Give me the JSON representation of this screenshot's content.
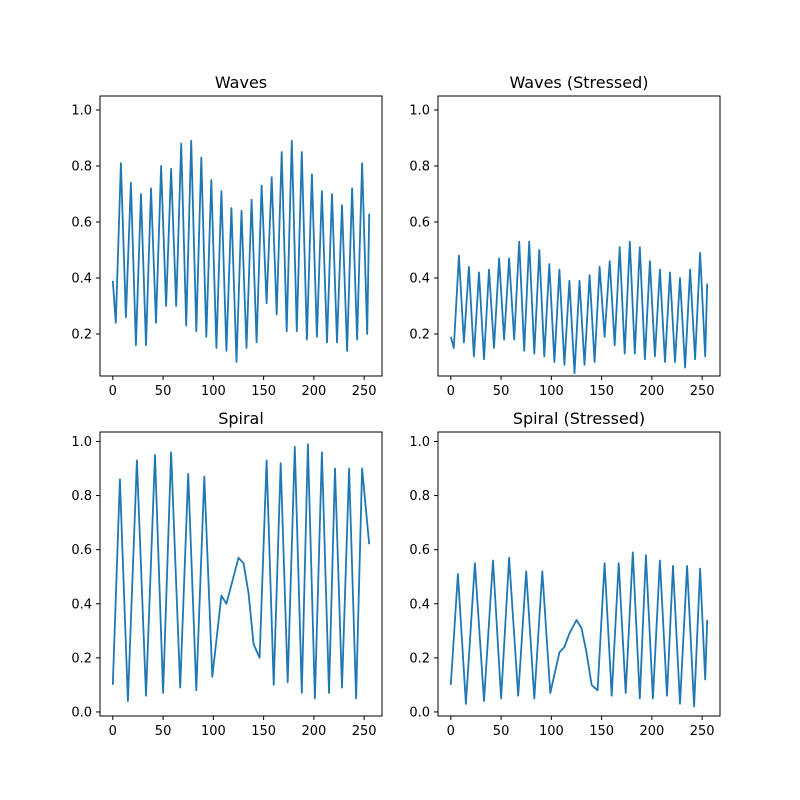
{
  "figure": {
    "background": "#ffffff",
    "line_color": "#1f77b4"
  },
  "chart_data": [
    {
      "type": "line",
      "title": "Waves",
      "xlim": [
        -12.75,
        267.75
      ],
      "ylim": [
        0.05,
        1.05
      ],
      "xticks": [
        0,
        50,
        100,
        150,
        200,
        250
      ],
      "yticks": [
        0.2,
        0.4,
        0.6,
        0.8,
        1.0
      ],
      "xtick_labels": [
        "0",
        "50",
        "100",
        "150",
        "200",
        "250"
      ],
      "ytick_labels": [
        "0.2",
        "0.4",
        "0.6",
        "0.8",
        "1.0"
      ],
      "series": [
        {
          "color": "#1f77b4",
          "x": [
            0,
            3,
            8,
            13,
            18,
            23,
            28,
            33,
            38,
            43,
            48,
            53,
            58,
            63,
            68,
            73,
            78,
            83,
            88,
            93,
            98,
            103,
            108,
            113,
            118,
            123,
            128,
            133,
            138,
            143,
            148,
            153,
            158,
            163,
            168,
            173,
            178,
            183,
            188,
            193,
            198,
            203,
            208,
            213,
            218,
            223,
            228,
            233,
            238,
            243,
            248,
            253,
            255
          ],
          "y": [
            0.39,
            0.24,
            0.81,
            0.26,
            0.74,
            0.16,
            0.7,
            0.16,
            0.72,
            0.24,
            0.8,
            0.3,
            0.79,
            0.3,
            0.88,
            0.23,
            0.89,
            0.21,
            0.83,
            0.19,
            0.75,
            0.15,
            0.71,
            0.14,
            0.65,
            0.1,
            0.64,
            0.15,
            0.68,
            0.17,
            0.73,
            0.31,
            0.76,
            0.27,
            0.85,
            0.21,
            0.89,
            0.21,
            0.85,
            0.18,
            0.77,
            0.19,
            0.71,
            0.17,
            0.7,
            0.17,
            0.66,
            0.14,
            0.72,
            0.18,
            0.81,
            0.2,
            0.63
          ]
        }
      ]
    },
    {
      "type": "line",
      "title": "Waves (Stressed)",
      "xlim": [
        -12.75,
        267.75
      ],
      "ylim": [
        0.05,
        1.05
      ],
      "xticks": [
        0,
        50,
        100,
        150,
        200,
        250
      ],
      "yticks": [
        0.2,
        0.4,
        0.6,
        0.8,
        1.0
      ],
      "xtick_labels": [
        "0",
        "50",
        "100",
        "150",
        "200",
        "250"
      ],
      "ytick_labels": [
        "0.2",
        "0.4",
        "0.6",
        "0.8",
        "1.0"
      ],
      "series": [
        {
          "color": "#1f77b4",
          "x": [
            0,
            3,
            8,
            13,
            18,
            23,
            28,
            33,
            38,
            43,
            48,
            53,
            58,
            63,
            68,
            73,
            78,
            83,
            88,
            93,
            98,
            103,
            108,
            113,
            118,
            123,
            128,
            133,
            138,
            143,
            148,
            153,
            158,
            163,
            168,
            173,
            178,
            183,
            188,
            193,
            198,
            203,
            208,
            213,
            218,
            223,
            228,
            233,
            238,
            243,
            248,
            253,
            255
          ],
          "y": [
            0.19,
            0.15,
            0.48,
            0.17,
            0.44,
            0.12,
            0.42,
            0.11,
            0.43,
            0.15,
            0.47,
            0.18,
            0.47,
            0.18,
            0.53,
            0.14,
            0.53,
            0.13,
            0.5,
            0.12,
            0.45,
            0.1,
            0.43,
            0.09,
            0.39,
            0.06,
            0.39,
            0.09,
            0.41,
            0.1,
            0.44,
            0.19,
            0.46,
            0.16,
            0.51,
            0.13,
            0.53,
            0.13,
            0.51,
            0.11,
            0.46,
            0.12,
            0.43,
            0.1,
            0.42,
            0.1,
            0.4,
            0.08,
            0.43,
            0.11,
            0.49,
            0.12,
            0.38
          ]
        }
      ]
    },
    {
      "type": "line",
      "title": "Spiral",
      "xlim": [
        -12.75,
        267.75
      ],
      "ylim": [
        -0.015,
        1.035
      ],
      "xticks": [
        0,
        50,
        100,
        150,
        200,
        250
      ],
      "yticks": [
        0.0,
        0.2,
        0.4,
        0.6,
        0.8,
        1.0
      ],
      "xtick_labels": [
        "0",
        "50",
        "100",
        "150",
        "200",
        "250"
      ],
      "ytick_labels": [
        "0.0",
        "0.2",
        "0.4",
        "0.6",
        "0.8",
        "1.0"
      ],
      "series": [
        {
          "color": "#1f77b4",
          "x": [
            0,
            7,
            15,
            24,
            33,
            42,
            50,
            58,
            67,
            75,
            83,
            91,
            99,
            108,
            113,
            118,
            125,
            130,
            135,
            140,
            146,
            153,
            160,
            167,
            174,
            181,
            188,
            194,
            201,
            208,
            215,
            221,
            228,
            235,
            242,
            248,
            255
          ],
          "y": [
            0.1,
            0.86,
            0.04,
            0.93,
            0.06,
            0.95,
            0.07,
            0.96,
            0.09,
            0.88,
            0.08,
            0.87,
            0.13,
            0.43,
            0.4,
            0.47,
            0.57,
            0.55,
            0.44,
            0.25,
            0.2,
            0.93,
            0.1,
            0.92,
            0.11,
            0.98,
            0.07,
            0.99,
            0.05,
            0.96,
            0.07,
            0.9,
            0.09,
            0.9,
            0.05,
            0.9,
            0.62
          ]
        }
      ]
    },
    {
      "type": "line",
      "title": "Spiral (Stressed)",
      "xlim": [
        -12.75,
        267.75
      ],
      "ylim": [
        -0.015,
        1.035
      ],
      "xticks": [
        0,
        50,
        100,
        150,
        200,
        250
      ],
      "yticks": [
        0.0,
        0.2,
        0.4,
        0.6,
        0.8,
        1.0
      ],
      "xtick_labels": [
        "0",
        "50",
        "100",
        "150",
        "200",
        "250"
      ],
      "ytick_labels": [
        "0.0",
        "0.2",
        "0.4",
        "0.6",
        "0.8",
        "1.0"
      ],
      "series": [
        {
          "color": "#1f77b4",
          "x": [
            0,
            7,
            15,
            24,
            33,
            42,
            50,
            58,
            67,
            75,
            83,
            91,
            99,
            108,
            113,
            118,
            125,
            130,
            135,
            140,
            146,
            153,
            160,
            167,
            174,
            181,
            188,
            194,
            201,
            208,
            215,
            221,
            228,
            235,
            242,
            248,
            253,
            255
          ],
          "y": [
            0.1,
            0.51,
            0.03,
            0.55,
            0.04,
            0.56,
            0.05,
            0.57,
            0.06,
            0.52,
            0.05,
            0.52,
            0.07,
            0.22,
            0.24,
            0.29,
            0.34,
            0.31,
            0.22,
            0.1,
            0.08,
            0.55,
            0.06,
            0.55,
            0.07,
            0.59,
            0.05,
            0.58,
            0.05,
            0.56,
            0.06,
            0.54,
            0.03,
            0.54,
            0.02,
            0.53,
            0.12,
            0.34
          ]
        }
      ]
    }
  ]
}
